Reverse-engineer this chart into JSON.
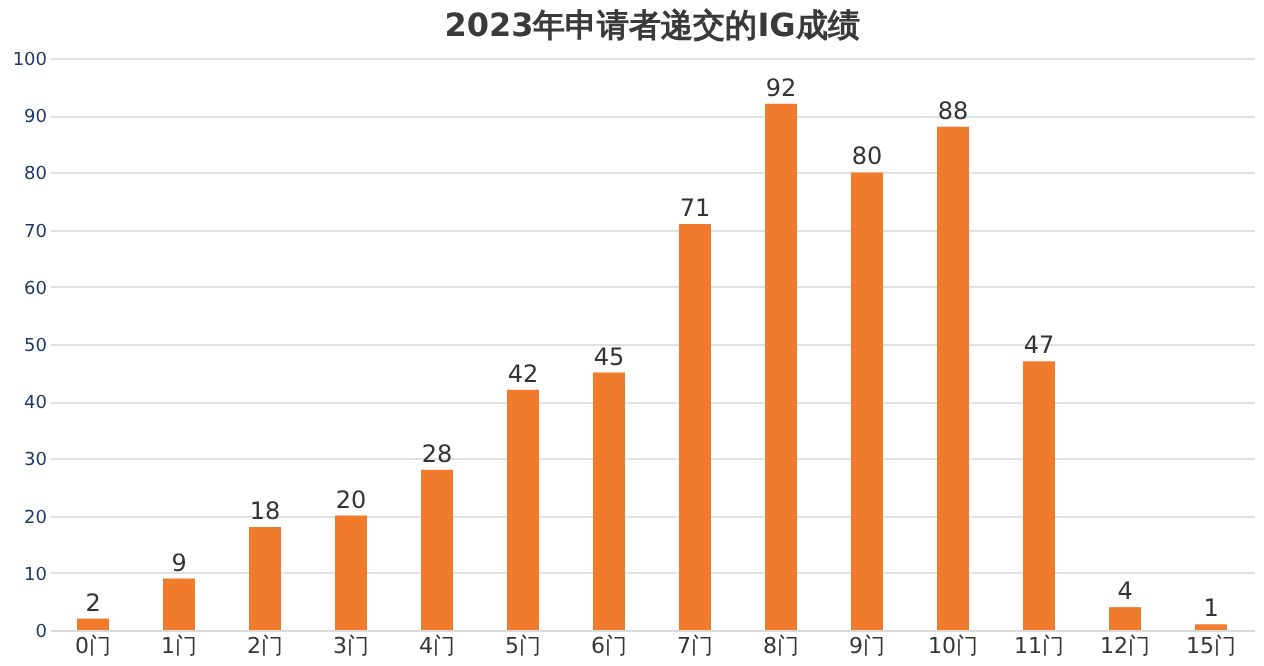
{
  "chart_data": {
    "type": "bar",
    "title": "2023年申请者递交的IG成绩",
    "categories": [
      "0门",
      "1门",
      "2门",
      "3门",
      "4门",
      "5门",
      "6门",
      "7门",
      "8门",
      "9门",
      "10门",
      "11门",
      "12门",
      "15门"
    ],
    "values": [
      2,
      9,
      18,
      20,
      28,
      42,
      45,
      71,
      92,
      80,
      88,
      47,
      4,
      1
    ],
    "color": "#f07b2c",
    "ylim": [
      0,
      100
    ],
    "yticks": [
      0,
      10,
      20,
      30,
      40,
      50,
      60,
      70,
      80,
      90,
      100
    ],
    "grid": "y",
    "data_labels": true
  }
}
